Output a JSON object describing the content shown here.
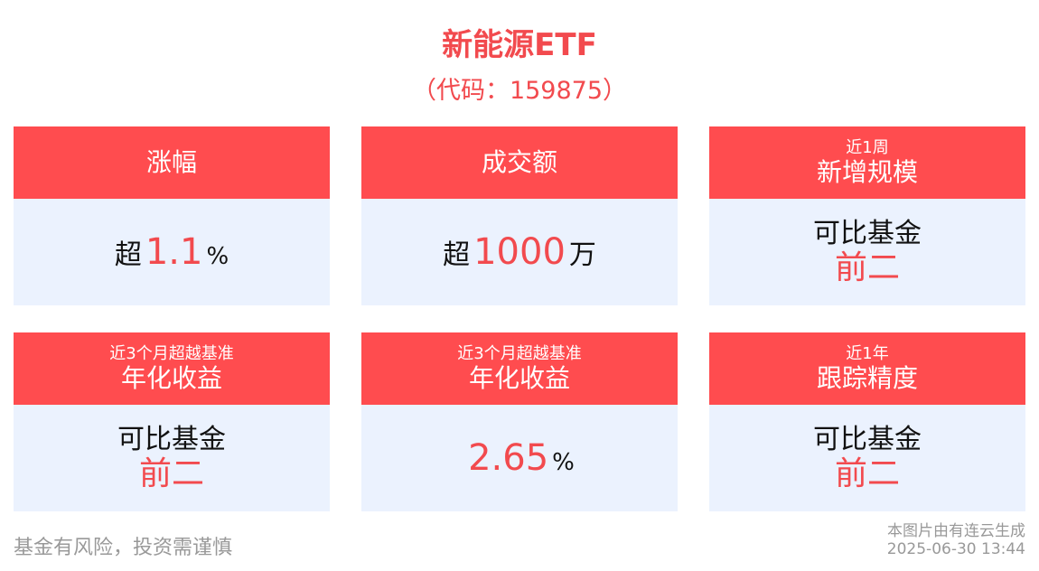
{
  "header": {
    "title": "新能源ETF",
    "code": "（代码：159875）"
  },
  "cards": [
    {
      "sub": "",
      "title": "涨幅",
      "prefix": "超",
      "value": "1.1",
      "unit": "%"
    },
    {
      "sub": "",
      "title": "成交额",
      "prefix": "超",
      "value": "1000",
      "unit": "万"
    },
    {
      "sub": "近1周",
      "title": "新增规模",
      "compare": "可比基金",
      "rank": "前二"
    },
    {
      "sub": "近3个月超越基准",
      "title": "年化收益",
      "compare": "可比基金",
      "rank": "前二"
    },
    {
      "sub": "近3个月超越基准",
      "title": "年化收益",
      "value": "2.65",
      "unit": "%"
    },
    {
      "sub": "近1年",
      "title": "跟踪精度",
      "compare": "可比基金",
      "rank": "前二"
    }
  ],
  "footer": {
    "risk": "基金有风险，投资需谨慎",
    "generated_by": "本图片由有连云生成",
    "timestamp": "2025-06-30 13:44"
  }
}
